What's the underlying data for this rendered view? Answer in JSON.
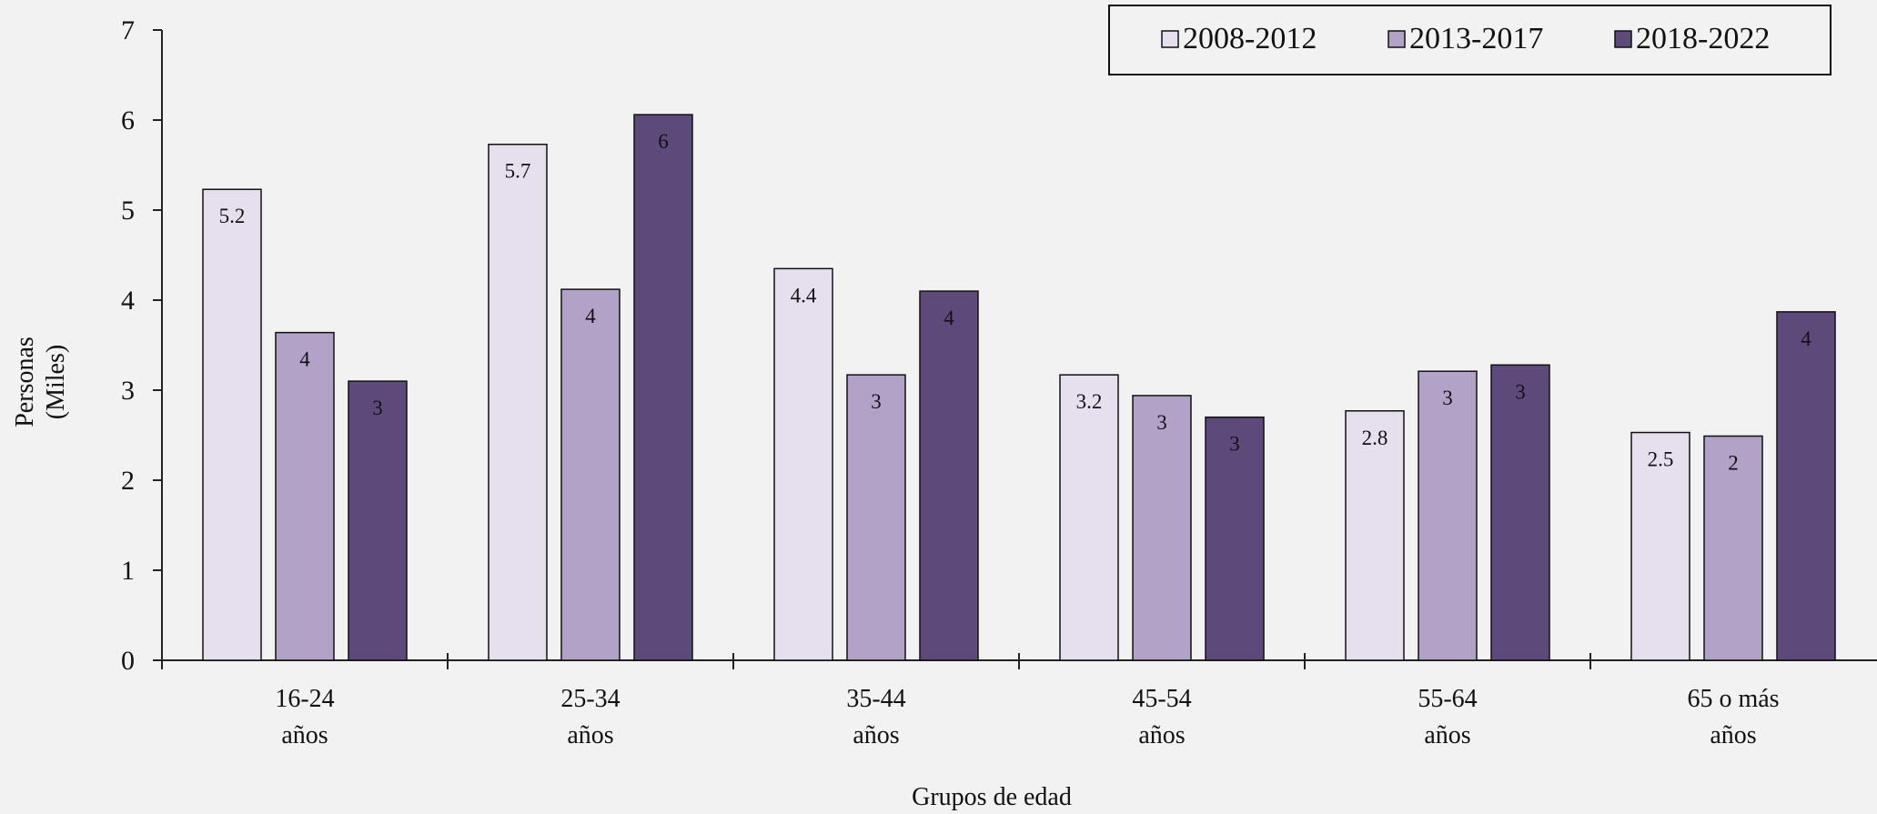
{
  "chart_data": {
    "type": "bar",
    "xlabel": "Grupos de edad",
    "ylabel": [
      "Personas",
      "(Miles)"
    ],
    "ylim": [
      0,
      7
    ],
    "yticks": [
      "0",
      "1",
      "2",
      "3",
      "4",
      "5",
      "6",
      "7"
    ],
    "grid": false,
    "legend_position": "top-right",
    "categories": [
      [
        "16-24",
        "años"
      ],
      [
        "25-34",
        "años"
      ],
      [
        "35-44",
        "años"
      ],
      [
        "45-54",
        "años"
      ],
      [
        "55-64",
        "años"
      ],
      [
        "65 o más",
        "años"
      ]
    ],
    "series": [
      {
        "name": "2008-2012",
        "color": "#e6e0ee",
        "values": [
          5.23,
          5.73,
          4.35,
          3.17,
          2.77,
          2.53
        ],
        "labels": [
          "5.2",
          "5.7",
          "4.4",
          "3.2",
          "2.8",
          "2.5"
        ]
      },
      {
        "name": "2013-2017",
        "color": "#b2a2c8",
        "values": [
          3.64,
          4.12,
          3.17,
          2.94,
          3.21,
          2.49
        ],
        "labels": [
          "4",
          "4",
          "3",
          "3",
          "3",
          "2"
        ]
      },
      {
        "name": "2018-2022",
        "color": "#5e4a7a",
        "values": [
          3.1,
          6.06,
          4.1,
          2.7,
          3.28,
          3.87
        ],
        "labels": [
          "3",
          "6",
          "4",
          "3",
          "3",
          "4"
        ]
      }
    ]
  }
}
